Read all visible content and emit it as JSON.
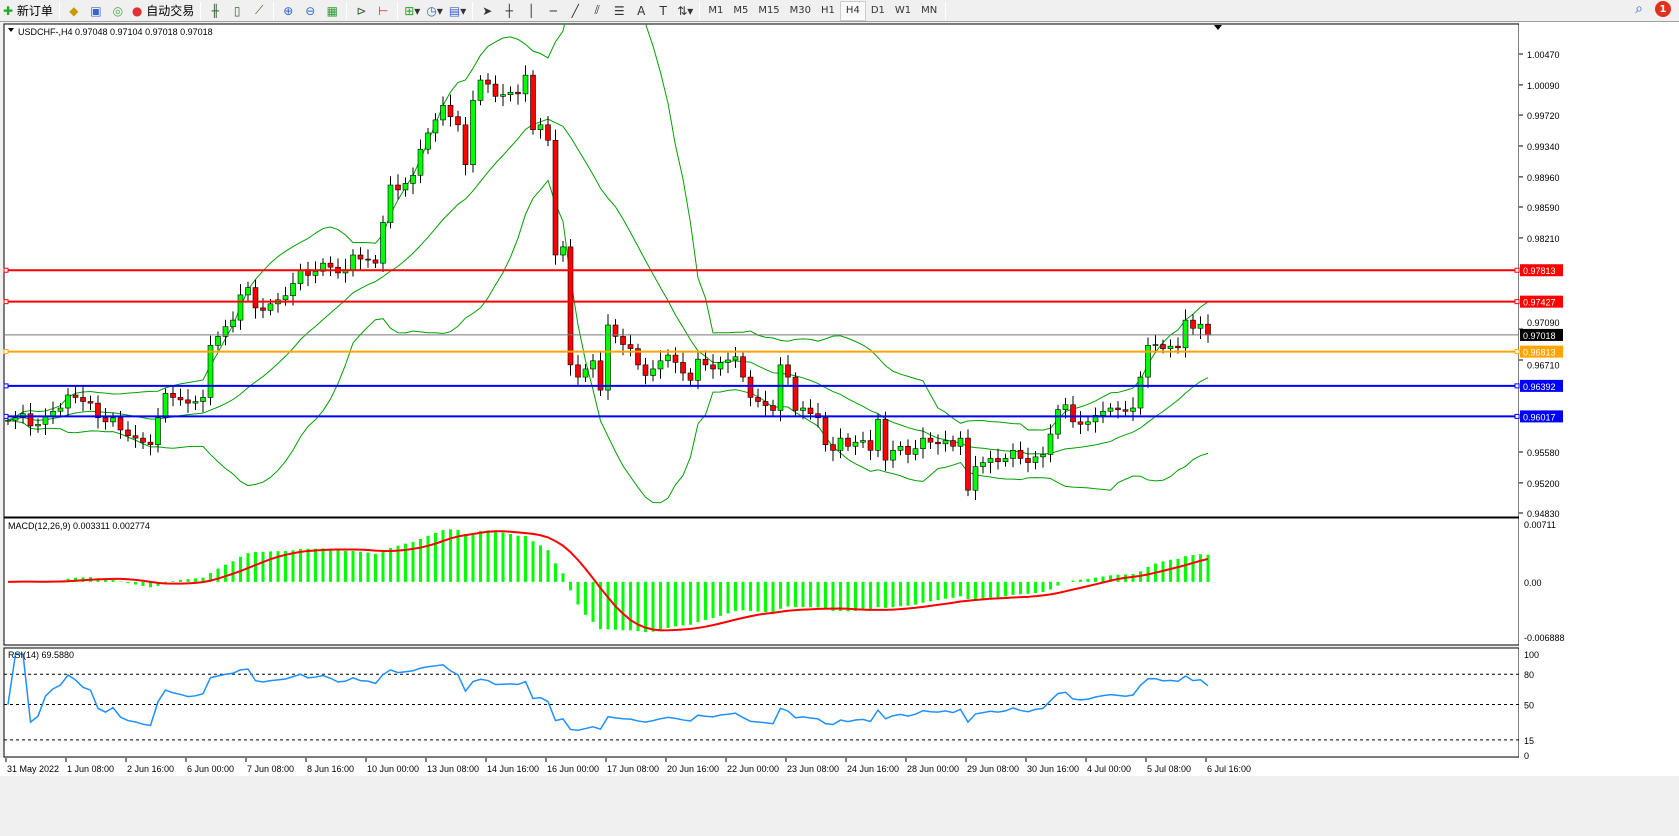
{
  "toolbar": {
    "new_order_label": "新订单",
    "auto_trade_label": "自动交易",
    "timeframes": [
      "M1",
      "M5",
      "M15",
      "M30",
      "H1",
      "H4",
      "D1",
      "W1",
      "MN"
    ],
    "active_timeframe": "H4",
    "notification_count": "1"
  },
  "chart_info": {
    "title": "USDCHF-,H4  0.97048 0.97104 0.97018 0.97018",
    "macd_label": "MACD(12,26,9) 0.003311 0.002774",
    "rsi_label": "RSI(14) 69.5880"
  },
  "colors": {
    "bull": "#00ff00",
    "bear": "#ff0000",
    "bands": "#00a000",
    "macd_hist": "#00ff00",
    "macd_signal": "#ff0000",
    "rsi": "#1e90ff"
  },
  "chart_data": {
    "type": "candlestick",
    "symbol": "USDCHF-",
    "timeframe": "H4",
    "ylim": [
      0.9483,
      1.0047
    ],
    "price_ticks": [
      "1.00470",
      "1.00090",
      "0.99720",
      "0.99340",
      "0.98960",
      "0.98590",
      "0.98210",
      "0.97090",
      "0.96710",
      "0.95580",
      "0.95200",
      "0.94830"
    ],
    "time_ticks": [
      "31 May 2022",
      "1 Jun 08:00",
      "2 Jun 16:00",
      "6 Jun 00:00",
      "7 Jun 08:00",
      "8 Jun 16:00",
      "10 Jun 00:00",
      "13 Jun 08:00",
      "14 Jun 16:00",
      "16 Jun 00:00",
      "17 Jun 08:00",
      "20 Jun 16:00",
      "22 Jun 00:00",
      "23 Jun 08:00",
      "24 Jun 16:00",
      "28 Jun 00:00",
      "29 Jun 08:00",
      "30 Jun 16:00",
      "4 Jul 00:00",
      "5 Jul 08:00",
      "6 Jul 16:00"
    ],
    "close": [
      0.9597,
      0.96,
      0.9605,
      0.959,
      0.9592,
      0.9602,
      0.9608,
      0.9612,
      0.9628,
      0.9625,
      0.962,
      0.9618,
      0.96,
      0.9595,
      0.96,
      0.9585,
      0.9578,
      0.9575,
      0.957,
      0.9567,
      0.96,
      0.963,
      0.9625,
      0.9622,
      0.9618,
      0.962,
      0.9625,
      0.9689,
      0.97,
      0.9712,
      0.972,
      0.9751,
      0.976,
      0.9735,
      0.9732,
      0.974,
      0.9745,
      0.975,
      0.9765,
      0.9782,
      0.9775,
      0.978,
      0.979,
      0.9785,
      0.9778,
      0.9782,
      0.98,
      0.9795,
      0.9794,
      0.979,
      0.984,
      0.9886,
      0.988,
      0.9888,
      0.9898,
      0.993,
      0.995,
      0.9966,
      0.9984,
      0.997,
      0.996,
      0.9911,
      0.999,
      1.0015,
      1.001,
      0.9995,
      0.9997,
      1.0,
      0.9998,
      1.0021,
      0.9954,
      0.996,
      0.9941,
      0.98,
      0.981,
      0.9665,
      0.965,
      0.966,
      0.967,
      0.9634,
      0.9714,
      0.97,
      0.969,
      0.9685,
      0.9665,
      0.9652,
      0.966,
      0.967,
      0.9677,
      0.9668,
      0.9655,
      0.9646,
      0.9672,
      0.9665,
      0.966,
      0.9668,
      0.9671,
      0.9675,
      0.965,
      0.9625,
      0.962,
      0.9615,
      0.9609,
      0.9665,
      0.965,
      0.9609,
      0.9612,
      0.9605,
      0.96,
      0.9567,
      0.956,
      0.9575,
      0.9565,
      0.957,
      0.9572,
      0.956,
      0.9598,
      0.9548,
      0.956,
      0.9565,
      0.9555,
      0.9562,
      0.9575,
      0.957,
      0.9568,
      0.9572,
      0.9565,
      0.9575,
      0.9511,
      0.954,
      0.9545,
      0.955,
      0.9546,
      0.955,
      0.956,
      0.955,
      0.9545,
      0.9552,
      0.9555,
      0.958,
      0.961,
      0.9616,
      0.9595,
      0.9592,
      0.9595,
      0.9603,
      0.9608,
      0.9612,
      0.961,
      0.9608,
      0.9612,
      0.965,
      0.9689,
      0.969,
      0.9685,
      0.9688,
      0.9686,
      0.972,
      0.971,
      0.9715,
      0.97018
    ],
    "levels": [
      {
        "price": "0.97813",
        "color": "#ff0000"
      },
      {
        "price": "0.97427",
        "color": "#ff0000"
      },
      {
        "price": "0.97018",
        "color": "#000000"
      },
      {
        "price": "0.96813",
        "color": "#ffa500"
      },
      {
        "price": "0.96392",
        "color": "#0000ff"
      },
      {
        "price": "0.96017",
        "color": "#0000ff"
      }
    ],
    "macd": {
      "params": "12,26,9",
      "ticks": [
        "0.00711",
        "0.00",
        "-0.006888"
      ],
      "ylim": [
        -0.006888,
        0.00711
      ]
    },
    "rsi": {
      "period": 14,
      "ticks": [
        "100",
        "80",
        "50",
        "15",
        "0"
      ],
      "levels": [
        80,
        50,
        15
      ]
    }
  }
}
